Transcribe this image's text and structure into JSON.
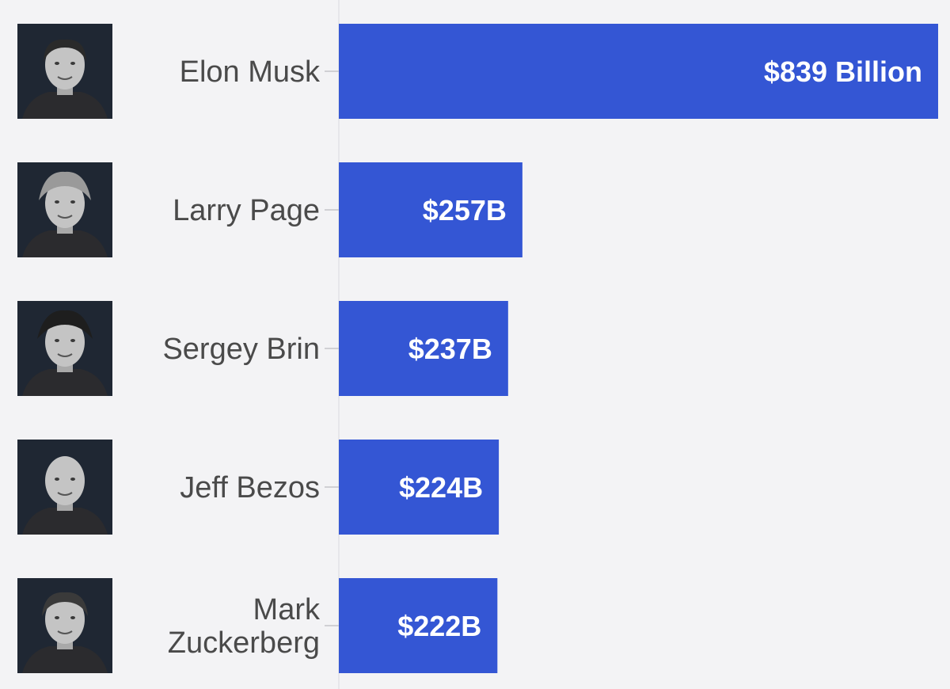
{
  "chart_data": {
    "type": "bar",
    "orientation": "horizontal",
    "categories": [
      "Elon Musk",
      "Larry Page",
      "Sergey Brin",
      "Jeff Bezos",
      "Mark Zuckerberg"
    ],
    "category_lines": [
      [
        "Elon Musk"
      ],
      [
        "Larry Page"
      ],
      [
        "Sergey Brin"
      ],
      [
        "Jeff Bezos"
      ],
      [
        "Mark",
        "Zuckerberg"
      ]
    ],
    "values": [
      839,
      257,
      237,
      224,
      222
    ],
    "value_labels": [
      "$839 Billion",
      "$257B",
      "$237B",
      "$224B",
      "$222B"
    ],
    "unit": "billion USD",
    "xlim": [
      0,
      839
    ],
    "bar_color": "#3456d4",
    "background_color": "#f3f3f5",
    "label_color": "#4a4a4a",
    "value_label_color": "#ffffff",
    "grid": false,
    "legend": false,
    "photo_icons": [
      "elon-musk-photo",
      "larry-page-photo",
      "sergey-brin-photo",
      "jeff-bezos-photo",
      "mark-zuckerberg-photo"
    ]
  }
}
